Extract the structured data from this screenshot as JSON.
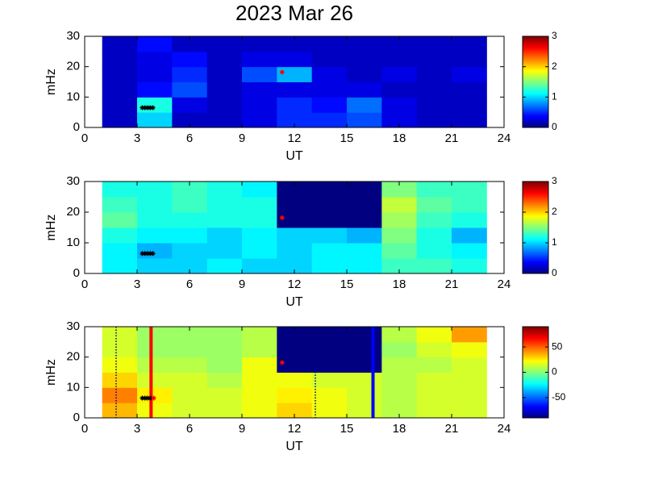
{
  "chart_data": [
    {
      "type": "heatmap",
      "title": "2023 Mar 26",
      "xlabel": "UT",
      "ylabel": "mHz",
      "colormap": "jet",
      "x_edges": [
        1,
        3,
        5,
        7,
        9,
        11,
        13,
        15,
        17,
        19,
        21,
        23
      ],
      "y_edges": [
        0,
        5,
        10,
        15,
        20,
        25,
        30
      ],
      "z": [
        [
          0.2,
          1.0,
          0.2,
          0.2,
          0.3,
          0.5,
          0.5,
          0.6,
          0.3,
          0.2,
          0.2
        ],
        [
          0.2,
          1.2,
          0.3,
          0.2,
          0.3,
          0.5,
          0.4,
          0.7,
          0.3,
          0.2,
          0.2
        ],
        [
          0.2,
          0.4,
          0.6,
          0.2,
          0.3,
          0.3,
          0.3,
          0.3,
          0.2,
          0.2,
          0.2
        ],
        [
          0.2,
          0.3,
          0.5,
          0.2,
          0.6,
          0.9,
          0.3,
          0.2,
          0.3,
          0.2,
          0.3
        ],
        [
          0.2,
          0.3,
          0.4,
          0.2,
          0.3,
          0.3,
          0.2,
          0.2,
          0.2,
          0.2,
          0.2
        ],
        [
          0.2,
          0.4,
          0.2,
          0.2,
          0.2,
          0.2,
          0.2,
          0.2,
          0.2,
          0.2,
          0.2
        ]
      ],
      "xlim": [
        0,
        24
      ],
      "xticks": [
        0,
        3,
        6,
        9,
        12,
        15,
        18,
        21,
        24
      ],
      "ylim": [
        0,
        30
      ],
      "yticks": [
        0,
        10,
        20,
        30
      ],
      "clim": [
        0,
        3
      ],
      "cticks": [
        0,
        1,
        2,
        3
      ],
      "markers": [
        {
          "color": "#000000",
          "x": [
            3.3,
            3.45,
            3.6,
            3.75,
            3.9
          ],
          "y": [
            6.5,
            6.5,
            6.5,
            6.5,
            6.5
          ]
        },
        {
          "color": "#ff0000",
          "x": [
            11.3
          ],
          "y": [
            18.2
          ]
        }
      ]
    },
    {
      "type": "heatmap",
      "xlabel": "UT",
      "ylabel": "mHz",
      "colormap": "jet",
      "x_edges": [
        1,
        3,
        5,
        7,
        9,
        11,
        13,
        15,
        17,
        19,
        21,
        23
      ],
      "y_edges": [
        0,
        5,
        10,
        15,
        20,
        25,
        30
      ],
      "z": [
        [
          1.1,
          1.0,
          1.0,
          1.1,
          1.0,
          1.0,
          1.1,
          1.1,
          1.3,
          1.3,
          1.2
        ],
        [
          1.1,
          0.9,
          1.0,
          1.0,
          1.1,
          1.0,
          1.1,
          1.1,
          1.4,
          1.2,
          1.1
        ],
        [
          1.2,
          1.1,
          1.1,
          1.0,
          1.1,
          1.0,
          1.0,
          0.9,
          1.5,
          1.2,
          0.9
        ],
        [
          1.4,
          1.2,
          1.2,
          1.2,
          1.2,
          0.0,
          0.0,
          0.0,
          1.6,
          1.3,
          1.2
        ],
        [
          1.3,
          1.2,
          1.3,
          1.2,
          1.2,
          0.0,
          0.0,
          0.0,
          1.7,
          1.4,
          1.3
        ],
        [
          1.2,
          1.2,
          1.3,
          1.2,
          1.1,
          0.0,
          0.0,
          0.0,
          1.5,
          1.3,
          1.3
        ]
      ],
      "xlim": [
        0,
        24
      ],
      "xticks": [
        0,
        3,
        6,
        9,
        12,
        15,
        18,
        21,
        24
      ],
      "ylim": [
        0,
        30
      ],
      "yticks": [
        0,
        10,
        20,
        30
      ],
      "clim": [
        0,
        3
      ],
      "cticks": [
        0,
        1,
        2,
        3
      ],
      "markers": [
        {
          "color": "#000000",
          "x": [
            3.3,
            3.45,
            3.6,
            3.75,
            3.9
          ],
          "y": [
            6.5,
            6.5,
            6.5,
            6.5,
            6.5
          ]
        },
        {
          "color": "#ff0000",
          "x": [
            11.3
          ],
          "y": [
            18.2
          ]
        }
      ]
    },
    {
      "type": "heatmap",
      "xlabel": "UT",
      "ylabel": "mHz",
      "colormap": "jet",
      "x_edges": [
        1,
        3,
        5,
        7,
        9,
        11,
        13,
        15,
        17,
        19,
        21,
        23
      ],
      "y_edges": [
        0,
        5,
        10,
        15,
        20,
        25,
        30
      ],
      "z": [
        [
          35,
          20,
          15,
          15,
          20,
          30,
          20,
          15,
          10,
          15,
          15
        ],
        [
          45,
          25,
          15,
          15,
          20,
          25,
          20,
          15,
          10,
          15,
          15
        ],
        [
          30,
          15,
          15,
          10,
          20,
          20,
          15,
          15,
          10,
          15,
          15
        ],
        [
          20,
          10,
          10,
          5,
          20,
          -90,
          -90,
          -90,
          10,
          10,
          15
        ],
        [
          15,
          5,
          5,
          5,
          10,
          -90,
          -90,
          -90,
          5,
          15,
          20
        ],
        [
          15,
          5,
          5,
          5,
          10,
          -90,
          -90,
          -90,
          10,
          20,
          40
        ]
      ],
      "xlim": [
        0,
        24
      ],
      "xticks": [
        0,
        3,
        6,
        9,
        12,
        15,
        18,
        21,
        24
      ],
      "ylim": [
        0,
        30
      ],
      "yticks": [
        0,
        10,
        20,
        30
      ],
      "clim": [
        -90,
        90
      ],
      "cticks": [
        -50,
        0,
        50
      ],
      "vlines": [
        {
          "x": 1.8,
          "color": "#00007f",
          "style": "dotted"
        },
        {
          "x": 3.8,
          "color": "#ff0000",
          "style": "solid"
        },
        {
          "x": 13.2,
          "color": "#00007f",
          "style": "dotted"
        },
        {
          "x": 16.5,
          "color": "#0000ff",
          "style": "solid"
        }
      ],
      "markers": [
        {
          "color": "#000000",
          "x": [
            3.3,
            3.45,
            3.6,
            3.75
          ],
          "y": [
            6.5,
            6.5,
            6.5,
            6.5
          ]
        },
        {
          "color": "#ff0000",
          "x": [
            3.95,
            11.3
          ],
          "y": [
            6.5,
            18.2
          ]
        }
      ]
    }
  ]
}
